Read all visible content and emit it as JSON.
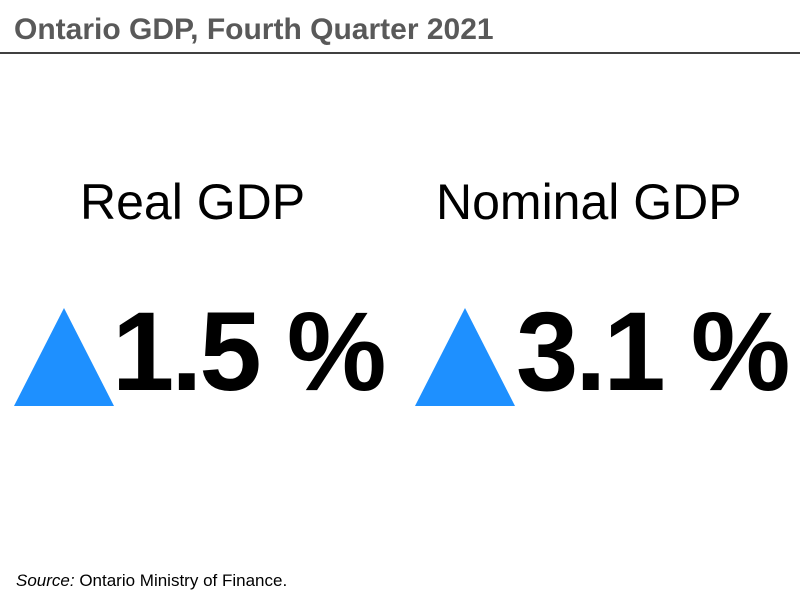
{
  "title": "Ontario GDP, Fourth Quarter 2021",
  "metrics": [
    {
      "label": "Real GDP",
      "value": "1.5 %",
      "direction_icon": "up-triangle-icon"
    },
    {
      "label": "Nominal GDP",
      "value": "3.1 %",
      "direction_icon": "up-triangle-icon"
    }
  ],
  "source": {
    "label": "Source:",
    "text": " Ontario Ministry of Finance."
  },
  "colors": {
    "title_text": "#595959",
    "accent_triangle": "#1e90ff",
    "rule": "#404040"
  }
}
